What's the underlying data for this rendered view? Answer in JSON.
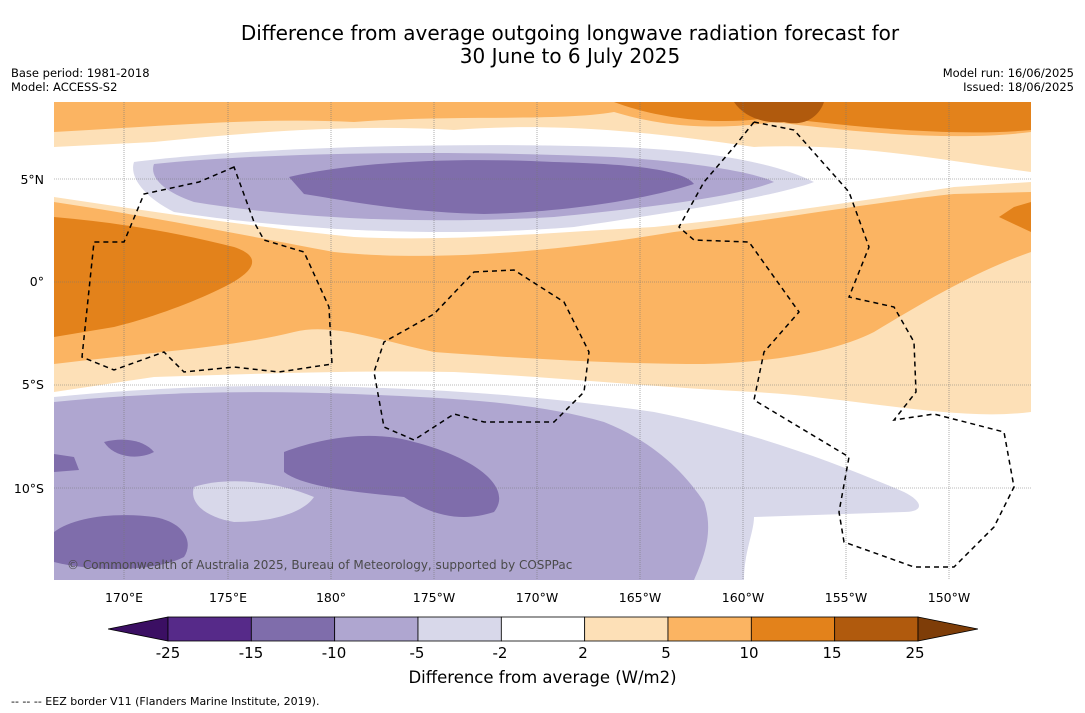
{
  "title_line1": "Difference from average outgoing longwave radiation forecast for",
  "title_line2": "30 June to 6 July 2025",
  "base_period": "Base period: 1981-2018",
  "model": "Model: ACCESS-S2",
  "model_run": "Model run: 16/06/2025",
  "issued": "Issued: 18/06/2025",
  "lat_labels": [
    "5°N",
    "0°",
    "5°S",
    "10°S"
  ],
  "lon_labels": [
    "170°E",
    "175°E",
    "180°",
    "175°W",
    "170°W",
    "165°W",
    "160°W",
    "155°W",
    "150°W"
  ],
  "colorbar": {
    "ticks": [
      "-25",
      "-15",
      "-10",
      "-5",
      "-2",
      "2",
      "5",
      "10",
      "15",
      "25"
    ],
    "colors": [
      "#562a89",
      "#7f6dab",
      "#afa6d0",
      "#d8d8ea",
      "#ffffff",
      "#fde0b7",
      "#fbb462",
      "#e3821b",
      "#b05a0d"
    ],
    "under_color": "#3b0f63",
    "over_color": "#7e3d08",
    "label": "Difference from average (W/m2)"
  },
  "legend_note": "-- -- -- EEZ border V11 (Flanders Marine Institute, 2019).",
  "copyright": "© Commonwealth of Australia 2025, Bureau of Meteorology, supported by COSPPac"
}
